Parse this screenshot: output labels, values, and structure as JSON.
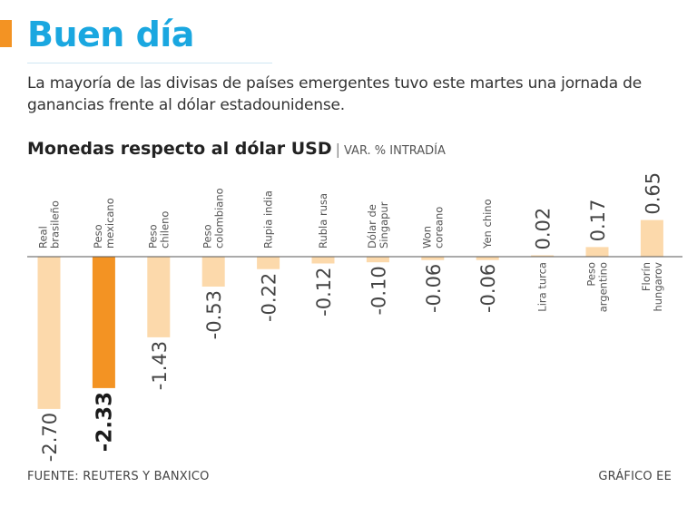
{
  "header": {
    "title": "Buen día",
    "lede": "La mayoría de las divisas de países emergentes tuvo este martes una jornada de ganancias frente al dólar estadounidense."
  },
  "colors": {
    "accent": "#f39323",
    "title": "#1aa7e0",
    "bar": "#fcd9ab",
    "bar_highlight": "#f39323",
    "axis": "#555555"
  },
  "chart_data": {
    "type": "bar",
    "title": "Monedas respecto al dólar USD",
    "separator": "|",
    "subtitle": "VAR. % INTRADÍA",
    "highlight_index": 1,
    "categories": [
      [
        "Real",
        "brasileño"
      ],
      [
        "Peso",
        "mexicano"
      ],
      [
        "Peso",
        "chileno"
      ],
      [
        "Peso",
        "colombiano"
      ],
      [
        "Rupia india"
      ],
      [
        "Rubla rusa"
      ],
      [
        "Dólar de",
        "Singapur"
      ],
      [
        "Won",
        "coreano"
      ],
      [
        "Yen chino"
      ],
      [
        "Lira turca"
      ],
      [
        "Peso",
        "argentino"
      ],
      [
        "Florín",
        "hungarov"
      ]
    ],
    "values": [
      -2.7,
      -2.33,
      -1.43,
      -0.53,
      -0.22,
      -0.12,
      -0.1,
      -0.06,
      -0.06,
      0.02,
      0.17,
      0.65
    ],
    "value_labels": [
      "-2.70",
      "-2.33",
      "-1.43",
      "-0.53",
      "-0.22",
      "-0.12",
      "-0.10",
      "-0.06",
      "-0.06",
      "0.02",
      "0.17",
      "0.65"
    ],
    "ylim": [
      -2.9,
      0.75
    ]
  },
  "footer": {
    "source": "FUENTE: REUTERS Y BANXICO",
    "credit": "GRÁFICO EE"
  }
}
